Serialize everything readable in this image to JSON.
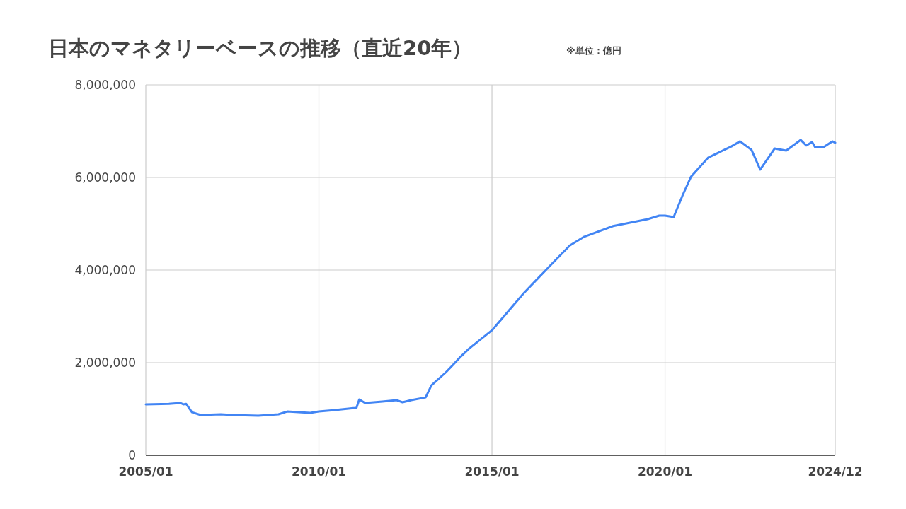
{
  "chart_data": {
    "type": "line",
    "title": "日本のマネタリーベースの推移（直近20年）",
    "subtitle": "※単位：億円",
    "x": [
      "2005-01",
      "2005-09",
      "2006-01",
      "2006-02",
      "2006-03",
      "2006-05",
      "2006-08",
      "2007-03",
      "2007-07",
      "2008-04",
      "2008-11",
      "2009-02",
      "2009-10",
      "2010-01",
      "2010-06",
      "2011-01",
      "2011-02",
      "2011-03",
      "2011-05",
      "2011-11",
      "2012-04",
      "2012-06",
      "2012-09",
      "2013-02",
      "2013-04",
      "2013-09",
      "2013-11",
      "2014-02",
      "2014-05",
      "2015-01",
      "2015-12",
      "2016-10",
      "2017-04",
      "2017-09",
      "2018-07",
      "2019-07",
      "2019-11",
      "2020-01",
      "2020-04",
      "2020-07",
      "2020-10",
      "2021-04",
      "2021-12",
      "2022-03",
      "2022-07",
      "2022-10",
      "2023-03",
      "2023-07",
      "2023-12",
      "2024-02",
      "2024-04",
      "2024-05",
      "2024-08",
      "2024-11",
      "2024-12"
    ],
    "values": [
      1100000,
      1110000,
      1130000,
      1100000,
      1110000,
      930000,
      870000,
      885000,
      870000,
      855000,
      885000,
      945000,
      915000,
      945000,
      975000,
      1020000,
      1020000,
      1205000,
      1130000,
      1160000,
      1190000,
      1145000,
      1190000,
      1250000,
      1510000,
      1790000,
      1920000,
      2120000,
      2300000,
      2700000,
      3500000,
      4150000,
      4530000,
      4720000,
      4950000,
      5100000,
      5175000,
      5175000,
      5145000,
      5600000,
      6015000,
      6430000,
      6670000,
      6780000,
      6595000,
      6170000,
      6625000,
      6580000,
      6810000,
      6690000,
      6765000,
      6655000,
      6655000,
      6780000,
      6750000
    ],
    "color": "#4285f4",
    "xlim": [
      "2005-01",
      "2024-12"
    ],
    "xticks": [
      {
        "value": "2005-01",
        "label": "2005/01"
      },
      {
        "value": "2010-01",
        "label": "2010/01"
      },
      {
        "value": "2015-01",
        "label": "2015/01"
      },
      {
        "value": "2020-01",
        "label": "2020/01"
      },
      {
        "value": "2024-12",
        "label": "2024/12"
      }
    ],
    "ylim": [
      0,
      8000000
    ],
    "yticks": [
      0,
      {
        "value": 2000000,
        "label": "2,000,000"
      },
      {
        "value": 4000000,
        "label": "4,000,000"
      },
      {
        "value": 6000000,
        "label": "6,000,000"
      },
      {
        "value": 8000000,
        "label": "8,000,000"
      }
    ],
    "grid": true
  }
}
